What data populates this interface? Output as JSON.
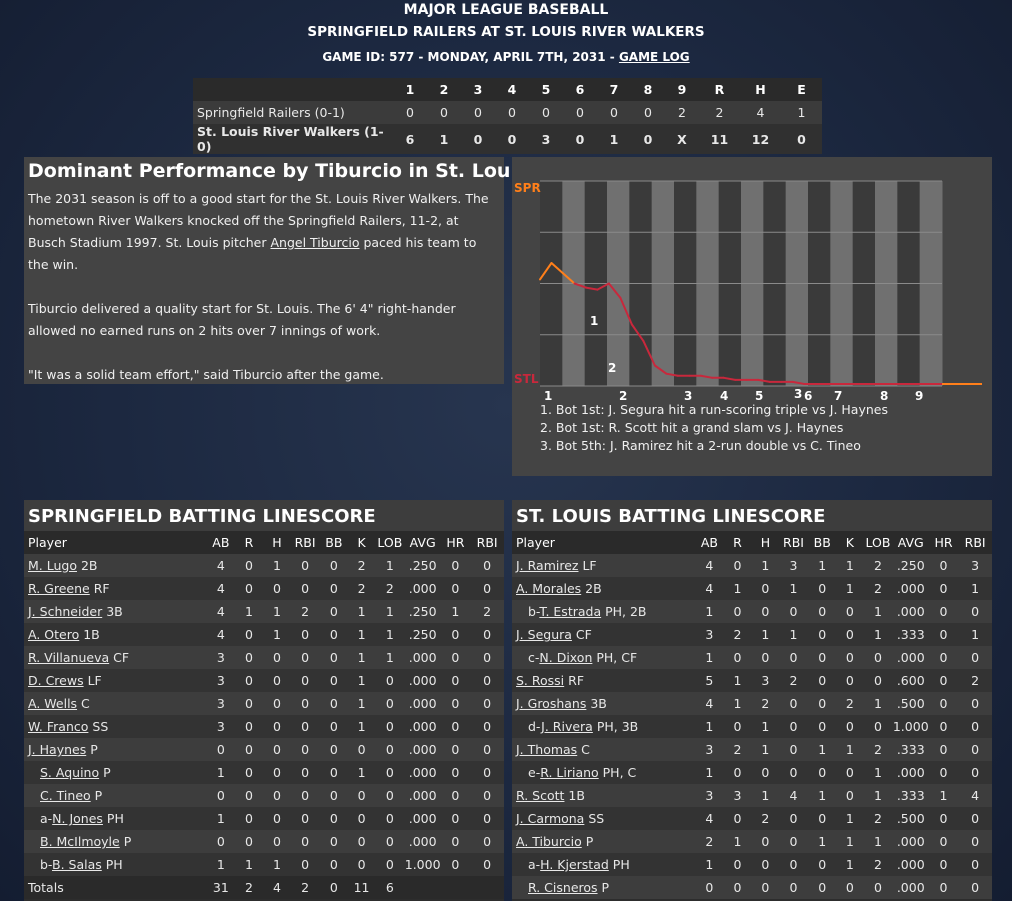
{
  "header": {
    "league": "MAJOR LEAGUE BASEBALL",
    "matchup": "SPRINGFIELD RAILERS AT ST. LOUIS RIVER WALKERS",
    "game_info": "GAME ID: 577 - MONDAY, APRIL 7TH, 2031 - ",
    "game_log_link": "GAME LOG"
  },
  "linescore": {
    "innings": [
      "1",
      "2",
      "3",
      "4",
      "5",
      "6",
      "7",
      "8",
      "9"
    ],
    "totals_headers": [
      "R",
      "H",
      "E"
    ],
    "teams": [
      {
        "name": "Springfield Railers (0-1)",
        "innings": [
          "0",
          "0",
          "0",
          "0",
          "0",
          "0",
          "0",
          "0",
          "2"
        ],
        "r": "2",
        "h": "4",
        "e": "1"
      },
      {
        "name": "St. Louis River Walkers (1-0)",
        "innings": [
          "6",
          "1",
          "0",
          "0",
          "3",
          "0",
          "1",
          "0",
          "X"
        ],
        "r": "11",
        "h": "12",
        "e": "0"
      }
    ]
  },
  "article": {
    "title": "Dominant Performance by Tiburcio in St. Louis Win",
    "p1_before": "The 2031 season is off to a good start for the St. Louis River Walkers. The hometown River Walkers knocked off the Springfield Railers, 11-2, at Busch Stadium 1997. St. Louis pitcher ",
    "p1_link": "Angel Tiburcio",
    "p1_after": " paced his team to the win.",
    "p2": "Tiburcio delivered a quality start for St. Louis. The 6' 4\" right-hander allowed no earned runs on 2 hits over 7 innings of work.",
    "p3": "\"It was a solid team effort,\" said Tiburcio after the game."
  },
  "win_prob": {
    "top_label": "SPR",
    "bottom_label": "STL",
    "colors": {
      "away": "#ff7f1a",
      "home": "#c8283c",
      "band_light": "#707070",
      "band_dark": "#3a3a3a"
    },
    "inning_labels": [
      "1",
      "2",
      "3",
      "4",
      "5",
      "6",
      "7",
      "8",
      "9"
    ],
    "markers": [
      "1",
      "2",
      "3"
    ],
    "series": [
      0.52,
      0.6,
      0.55,
      0.5,
      0.48,
      0.47,
      0.5,
      0.43,
      0.3,
      0.22,
      0.1,
      0.06,
      0.05,
      0.05,
      0.05,
      0.04,
      0.04,
      0.03,
      0.03,
      0.03,
      0.02,
      0.02,
      0.02,
      0.01,
      0.01,
      0.01,
      0.01,
      0.01,
      0.01,
      0.01,
      0.01,
      0.01,
      0.01,
      0.01,
      0.01,
      0.01
    ],
    "notes": [
      "1. Bot 1st: J. Segura hit a run-scoring triple vs J. Haynes",
      "2. Bot 1st: R. Scott hit a grand slam vs J. Haynes",
      "3. Bot 5th: J. Ramirez hit a 2-run double vs C. Tineo"
    ]
  },
  "springfield": {
    "title": "SPRINGFIELD BATTING LINESCORE",
    "columns": [
      "Player",
      "AB",
      "R",
      "H",
      "RBI",
      "BB",
      "K",
      "LOB",
      "AVG",
      "HR",
      "RBI"
    ],
    "rows": [
      {
        "prefix": "",
        "name": "M. Lugo",
        "pos": "2B",
        "sub": false,
        "stats": [
          "4",
          "0",
          "1",
          "0",
          "0",
          "2",
          "1",
          ".250",
          "0",
          "0"
        ]
      },
      {
        "prefix": "",
        "name": "R. Greene",
        "pos": "RF",
        "sub": false,
        "stats": [
          "4",
          "0",
          "0",
          "0",
          "0",
          "2",
          "2",
          ".000",
          "0",
          "0"
        ]
      },
      {
        "prefix": "",
        "name": "J. Schneider",
        "pos": "3B",
        "sub": false,
        "stats": [
          "4",
          "1",
          "1",
          "2",
          "0",
          "1",
          "1",
          ".250",
          "1",
          "2"
        ]
      },
      {
        "prefix": "",
        "name": "A. Otero",
        "pos": "1B",
        "sub": false,
        "stats": [
          "4",
          "0",
          "1",
          "0",
          "0",
          "1",
          "1",
          ".250",
          "0",
          "0"
        ]
      },
      {
        "prefix": "",
        "name": "R. Villanueva",
        "pos": "CF",
        "sub": false,
        "stats": [
          "3",
          "0",
          "0",
          "0",
          "0",
          "1",
          "1",
          ".000",
          "0",
          "0"
        ]
      },
      {
        "prefix": "",
        "name": "D. Crews",
        "pos": "LF",
        "sub": false,
        "stats": [
          "3",
          "0",
          "0",
          "0",
          "0",
          "1",
          "0",
          ".000",
          "0",
          "0"
        ]
      },
      {
        "prefix": "",
        "name": "A. Wells",
        "pos": "C",
        "sub": false,
        "stats": [
          "3",
          "0",
          "0",
          "0",
          "0",
          "1",
          "0",
          ".000",
          "0",
          "0"
        ]
      },
      {
        "prefix": "",
        "name": "W. Franco",
        "pos": "SS",
        "sub": false,
        "stats": [
          "3",
          "0",
          "0",
          "0",
          "0",
          "1",
          "0",
          ".000",
          "0",
          "0"
        ]
      },
      {
        "prefix": "",
        "name": "J. Haynes",
        "pos": "P",
        "sub": false,
        "stats": [
          "0",
          "0",
          "0",
          "0",
          "0",
          "0",
          "0",
          ".000",
          "0",
          "0"
        ]
      },
      {
        "prefix": "",
        "name": "S. Aquino",
        "pos": "P",
        "sub": true,
        "stats": [
          "1",
          "0",
          "0",
          "0",
          "0",
          "1",
          "0",
          ".000",
          "0",
          "0"
        ]
      },
      {
        "prefix": "",
        "name": "C. Tineo",
        "pos": "P",
        "sub": true,
        "stats": [
          "0",
          "0",
          "0",
          "0",
          "0",
          "0",
          "0",
          ".000",
          "0",
          "0"
        ]
      },
      {
        "prefix": "a-",
        "name": "N. Jones",
        "pos": "PH",
        "sub": true,
        "stats": [
          "1",
          "0",
          "0",
          "0",
          "0",
          "0",
          "0",
          ".000",
          "0",
          "0"
        ]
      },
      {
        "prefix": "",
        "name": "B. McIlmoyle",
        "pos": "P",
        "sub": true,
        "stats": [
          "0",
          "0",
          "0",
          "0",
          "0",
          "0",
          "0",
          ".000",
          "0",
          "0"
        ]
      },
      {
        "prefix": "b-",
        "name": "B. Salas",
        "pos": "PH",
        "sub": true,
        "stats": [
          "1",
          "1",
          "1",
          "0",
          "0",
          "0",
          "0",
          "1.000",
          "0",
          "0"
        ]
      }
    ],
    "totals": {
      "label": "Totals",
      "stats": [
        "31",
        "2",
        "4",
        "2",
        "0",
        "11",
        "6",
        "",
        "",
        ""
      ]
    }
  },
  "stlouis": {
    "title": "ST. LOUIS BATTING LINESCORE",
    "columns": [
      "Player",
      "AB",
      "R",
      "H",
      "RBI",
      "BB",
      "K",
      "LOB",
      "AVG",
      "HR",
      "RBI"
    ],
    "rows": [
      {
        "prefix": "",
        "name": "J. Ramirez",
        "pos": "LF",
        "sub": false,
        "stats": [
          "4",
          "0",
          "1",
          "3",
          "1",
          "1",
          "2",
          ".250",
          "0",
          "3"
        ]
      },
      {
        "prefix": "",
        "name": "A. Morales",
        "pos": "2B",
        "sub": false,
        "stats": [
          "4",
          "1",
          "0",
          "1",
          "0",
          "1",
          "2",
          ".000",
          "0",
          "1"
        ]
      },
      {
        "prefix": "b-",
        "name": "T. Estrada",
        "pos": "PH, 2B",
        "sub": true,
        "stats": [
          "1",
          "0",
          "0",
          "0",
          "0",
          "0",
          "1",
          ".000",
          "0",
          "0"
        ]
      },
      {
        "prefix": "",
        "name": "J. Segura",
        "pos": "CF",
        "sub": false,
        "stats": [
          "3",
          "2",
          "1",
          "1",
          "0",
          "0",
          "1",
          ".333",
          "0",
          "1"
        ]
      },
      {
        "prefix": "c-",
        "name": "N. Dixon",
        "pos": "PH, CF",
        "sub": true,
        "stats": [
          "1",
          "0",
          "0",
          "0",
          "0",
          "0",
          "0",
          ".000",
          "0",
          "0"
        ]
      },
      {
        "prefix": "",
        "name": "S. Rossi",
        "pos": "RF",
        "sub": false,
        "stats": [
          "5",
          "1",
          "3",
          "2",
          "0",
          "0",
          "0",
          ".600",
          "0",
          "2"
        ]
      },
      {
        "prefix": "",
        "name": "J. Groshans",
        "pos": "3B",
        "sub": false,
        "stats": [
          "4",
          "1",
          "2",
          "0",
          "0",
          "2",
          "1",
          ".500",
          "0",
          "0"
        ]
      },
      {
        "prefix": "d-",
        "name": "J. Rivera",
        "pos": "PH, 3B",
        "sub": true,
        "stats": [
          "1",
          "0",
          "1",
          "0",
          "0",
          "0",
          "0",
          "1.000",
          "0",
          "0"
        ]
      },
      {
        "prefix": "",
        "name": "J. Thomas",
        "pos": "C",
        "sub": false,
        "stats": [
          "3",
          "2",
          "1",
          "0",
          "1",
          "1",
          "2",
          ".333",
          "0",
          "0"
        ]
      },
      {
        "prefix": "e-",
        "name": "R. Liriano",
        "pos": "PH, C",
        "sub": true,
        "stats": [
          "1",
          "0",
          "0",
          "0",
          "0",
          "0",
          "1",
          ".000",
          "0",
          "0"
        ]
      },
      {
        "prefix": "",
        "name": "R. Scott",
        "pos": "1B",
        "sub": false,
        "stats": [
          "3",
          "3",
          "1",
          "4",
          "1",
          "0",
          "1",
          ".333",
          "1",
          "4"
        ]
      },
      {
        "prefix": "",
        "name": "J. Carmona",
        "pos": "SS",
        "sub": false,
        "stats": [
          "4",
          "0",
          "2",
          "0",
          "0",
          "1",
          "2",
          ".500",
          "0",
          "0"
        ]
      },
      {
        "prefix": "",
        "name": "A. Tiburcio",
        "pos": "P",
        "sub": false,
        "stats": [
          "2",
          "1",
          "0",
          "0",
          "1",
          "1",
          "1",
          ".000",
          "0",
          "0"
        ]
      },
      {
        "prefix": "a-",
        "name": "H. Kjerstad",
        "pos": "PH",
        "sub": true,
        "stats": [
          "1",
          "0",
          "0",
          "0",
          "0",
          "1",
          "2",
          ".000",
          "0",
          "0"
        ]
      },
      {
        "prefix": "",
        "name": "R. Cisneros",
        "pos": "P",
        "sub": true,
        "stats": [
          "0",
          "0",
          "0",
          "0",
          "0",
          "0",
          "0",
          ".000",
          "0",
          "0"
        ]
      }
    ]
  }
}
